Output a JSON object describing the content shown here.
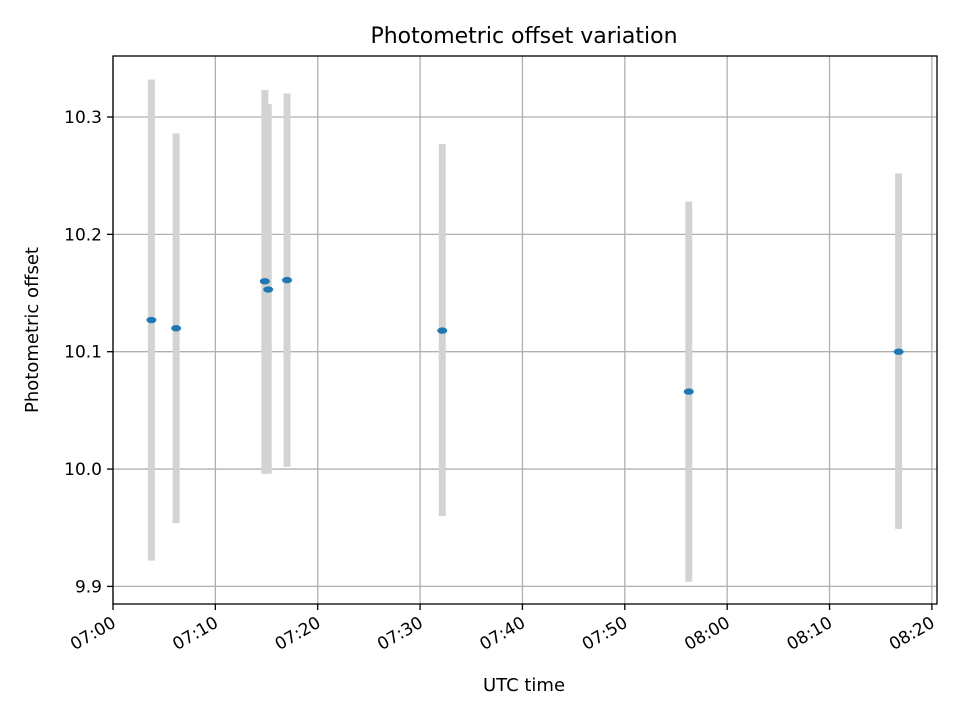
{
  "chart_data": {
    "type": "scatter",
    "title": "Photometric offset variation",
    "xlabel": "UTC time",
    "ylabel": "Photometric offset",
    "xlim": [
      "07:00:00",
      "08:20:30"
    ],
    "ylim": [
      9.885,
      10.352
    ],
    "x_ticks": [
      "07:00",
      "07:10",
      "07:20",
      "07:30",
      "07:40",
      "07:50",
      "08:00",
      "08:10",
      "08:20"
    ],
    "y_ticks": [
      "9.9",
      "10.0",
      "10.1",
      "10.2",
      "10.3"
    ],
    "grid": true,
    "colors": {
      "point": "#1f77b4",
      "error_bar": "#d3d3d3",
      "grid": "#b0b0b0"
    },
    "series": [
      {
        "points": [
          {
            "x": "07:03:45",
            "y": 10.127,
            "y_lower": 9.922,
            "y_upper": 10.332
          },
          {
            "x": "07:06:10",
            "y": 10.12,
            "y_lower": 9.954,
            "y_upper": 10.286
          },
          {
            "x": "07:14:50",
            "y": 10.16,
            "y_lower": 9.996,
            "y_upper": 10.323
          },
          {
            "x": "07:15:10",
            "y": 10.153,
            "y_lower": 9.996,
            "y_upper": 10.311
          },
          {
            "x": "07:17:00",
            "y": 10.161,
            "y_lower": 10.002,
            "y_upper": 10.32
          },
          {
            "x": "07:32:10",
            "y": 10.118,
            "y_lower": 9.96,
            "y_upper": 10.277
          },
          {
            "x": "07:56:15",
            "y": 10.066,
            "y_lower": 9.904,
            "y_upper": 10.228
          },
          {
            "x": "08:16:45",
            "y": 10.1,
            "y_lower": 9.949,
            "y_upper": 10.252
          }
        ]
      }
    ]
  }
}
